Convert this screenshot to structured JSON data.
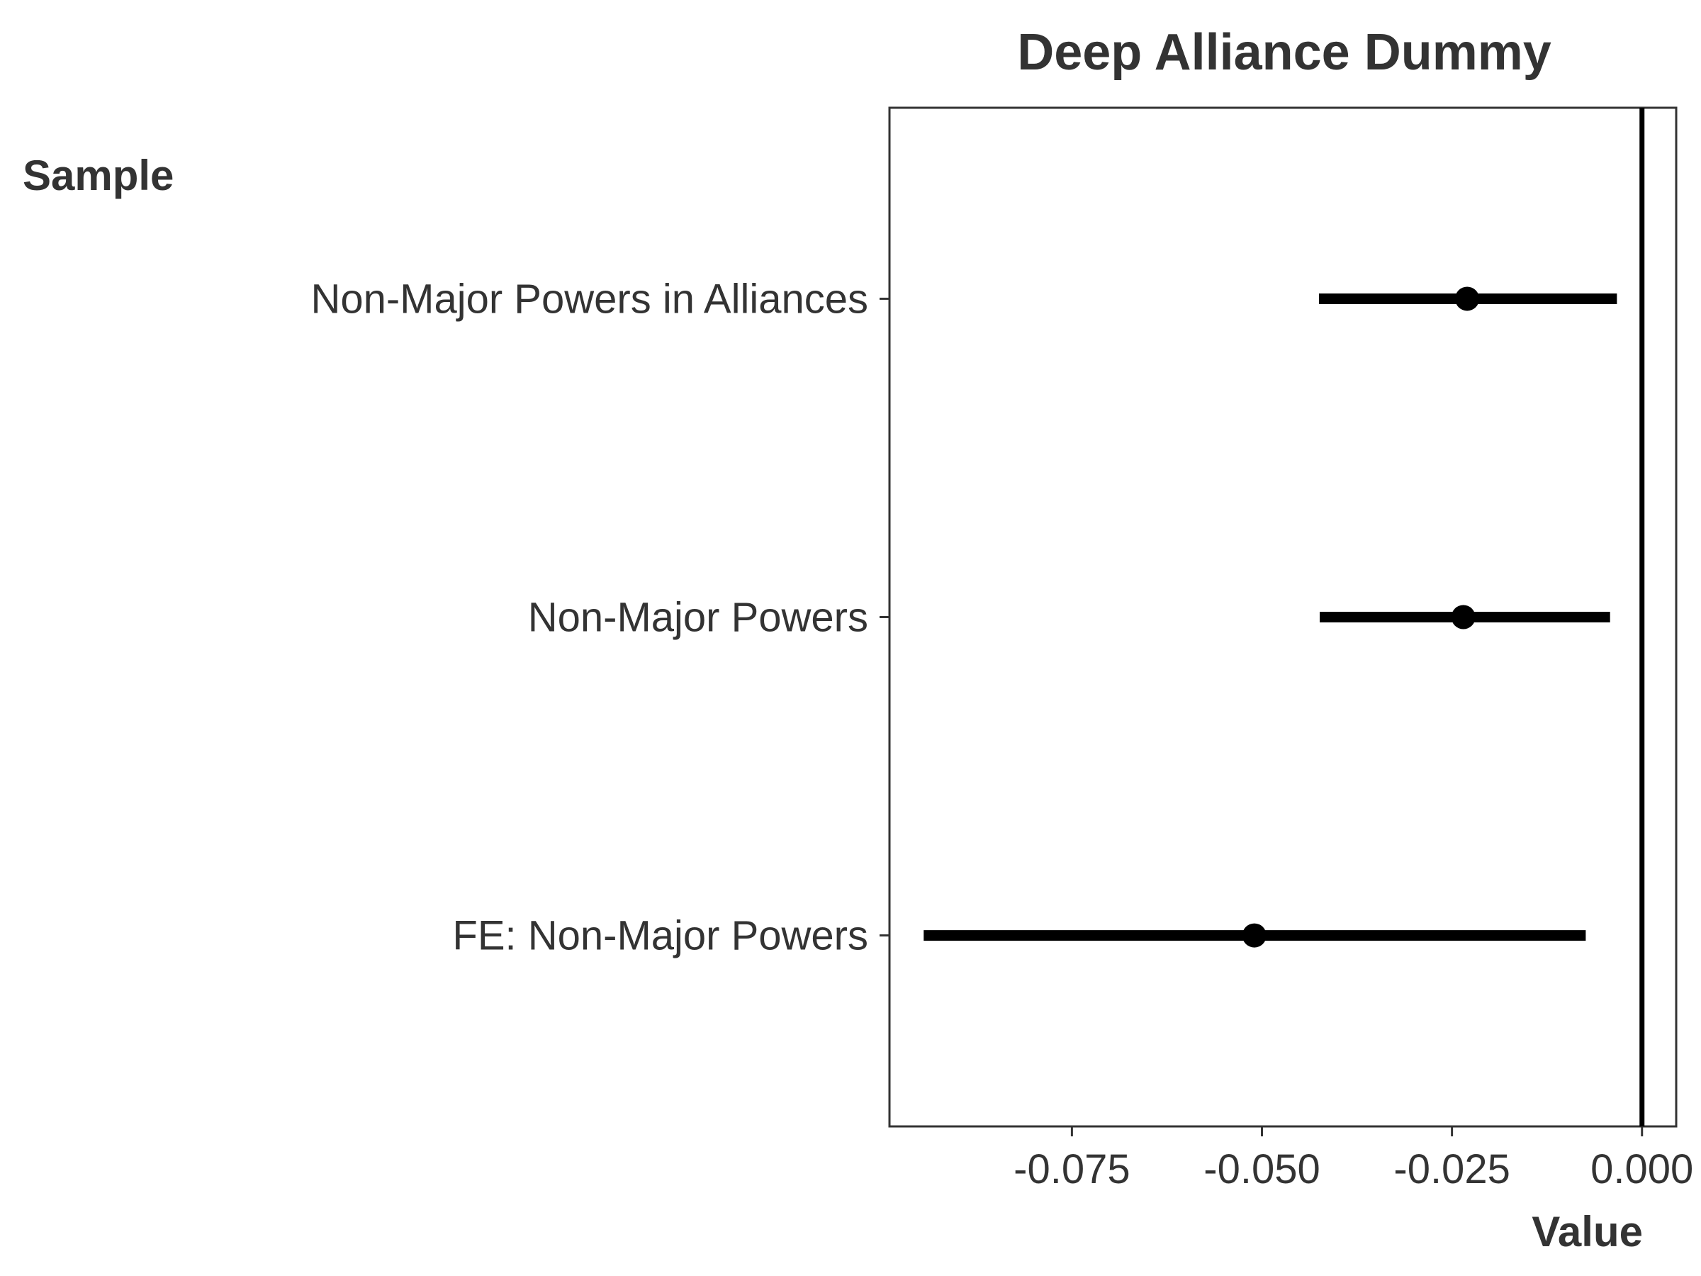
{
  "chart_data": {
    "type": "coefficient-plot",
    "title": "Deep Alliance Dummy",
    "xlabel": "Value",
    "ylabel": "Sample",
    "xlim": [
      -0.099,
      0.0045
    ],
    "x_ticks": [
      -0.075,
      -0.05,
      -0.025,
      0.0
    ],
    "x_tick_labels": [
      "-0.075",
      "-0.050",
      "-0.025",
      "0.000"
    ],
    "reference_line": 0.0,
    "grid": false,
    "categories": [
      "Non-Major Powers in Alliances",
      "Non-Major Powers",
      "FE: Non-Major Powers"
    ],
    "estimates": [
      {
        "label": "Non-Major Powers in Alliances",
        "value": -0.023,
        "lower": -0.0425,
        "upper": -0.0033
      },
      {
        "label": "Non-Major Powers",
        "value": -0.0235,
        "lower": -0.0424,
        "upper": -0.0042
      },
      {
        "label": "FE: Non-Major Powers",
        "value": -0.051,
        "lower": -0.0945,
        "upper": -0.0074
      }
    ],
    "colors": {
      "marks": "#000000",
      "text": "#333333",
      "frame": "#333333"
    }
  }
}
